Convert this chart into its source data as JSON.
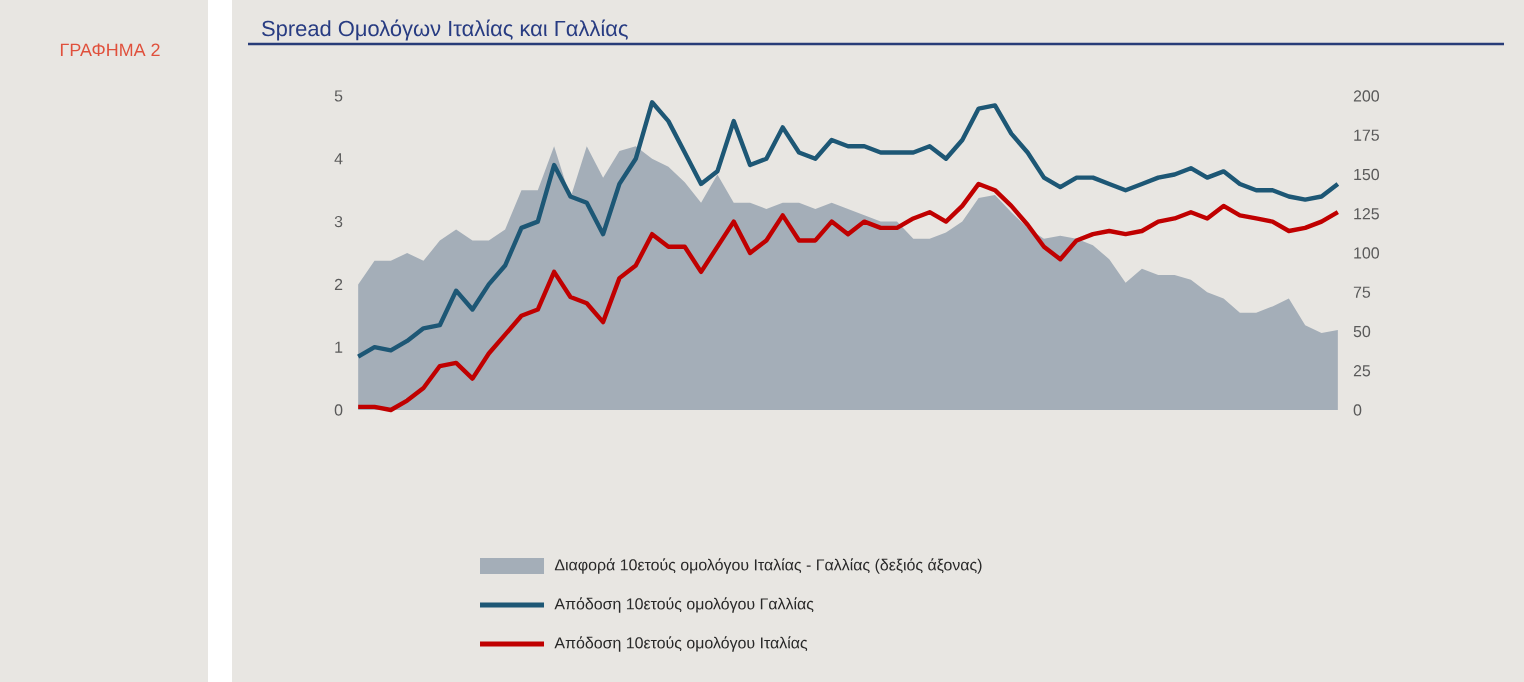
{
  "chart_data": {
    "type": "line",
    "title": "Spread Ομολόγων Ιταλίας και Γαλλίας",
    "annotations": [
      "ΓΡΑΦΗΜΑ 2"
    ],
    "categories": [
      null,
      null,
      null,
      null,
      null,
      null,
      null,
      null,
      null,
      null,
      null,
      null,
      null,
      null,
      null,
      null,
      null,
      null,
      null,
      null,
      null,
      null,
      null,
      null,
      null,
      null,
      null,
      null,
      null,
      null,
      null,
      null,
      null,
      null,
      null,
      null,
      null,
      null,
      null,
      null,
      null,
      null,
      null,
      null,
      null,
      null,
      null,
      null,
      null,
      null,
      null,
      null,
      null,
      null,
      null,
      null,
      null,
      null,
      null,
      null,
      null
    ],
    "ylim": [
      0,
      5
    ],
    "yticks": [
      0,
      1,
      2,
      3,
      4,
      5
    ],
    "y2lim": [
      0,
      200
    ],
    "y2ticks": [
      0,
      25,
      50,
      75,
      100,
      125,
      150,
      175,
      200
    ],
    "legend": "bottom",
    "grid": false,
    "series": [
      {
        "name": "Διαφορά 10ετούς ομολόγου Ιταλίας - Γαλλίας (δεξιός άξονας)",
        "type": "area",
        "axis": "y2",
        "color": "#a4aeb8",
        "values": [
          80,
          95,
          95,
          100,
          95,
          108,
          115,
          108,
          108,
          115,
          140,
          140,
          168,
          135,
          168,
          148,
          165,
          168,
          160,
          155,
          145,
          132,
          150,
          132,
          132,
          128,
          132,
          132,
          128,
          132,
          128,
          124,
          120,
          120,
          109,
          109,
          113,
          120,
          135,
          137,
          126,
          116,
          109,
          111,
          109,
          105,
          96,
          81,
          90,
          86,
          86,
          83,
          75,
          71,
          62,
          62,
          66,
          71,
          54,
          49,
          51
        ]
      },
      {
        "name": "Απόδοση 10ετούς ομολόγου Γαλλίας",
        "color": "#1d5775",
        "values": [
          0.85,
          1.0,
          0.95,
          1.1,
          1.3,
          1.35,
          1.9,
          1.6,
          2.0,
          2.3,
          2.9,
          3.0,
          3.9,
          3.4,
          3.3,
          2.8,
          3.6,
          4.0,
          4.9,
          4.6,
          4.1,
          3.6,
          3.8,
          4.6,
          3.9,
          4.0,
          4.5,
          4.1,
          4.0,
          4.3,
          4.2,
          4.2,
          4.1,
          4.1,
          4.1,
          4.2,
          4.0,
          4.3,
          4.8,
          4.85,
          4.4,
          4.1,
          3.7,
          3.55,
          3.7,
          3.7,
          3.6,
          3.5,
          3.6,
          3.7,
          3.75,
          3.85,
          3.7,
          3.8,
          3.6,
          3.5,
          3.5,
          3.4,
          3.35,
          3.4,
          3.6
        ]
      },
      {
        "name": "Απόδοση 10ετούς ομολόγου Ιταλίας",
        "color": "#c00000",
        "values": [
          0.05,
          0.05,
          0.0,
          0.15,
          0.35,
          0.7,
          0.75,
          0.5,
          0.9,
          1.2,
          1.5,
          1.6,
          2.2,
          1.8,
          1.7,
          1.4,
          2.1,
          2.3,
          2.8,
          2.6,
          2.6,
          2.2,
          2.6,
          3.0,
          2.5,
          2.7,
          3.1,
          2.7,
          2.7,
          3.0,
          2.8,
          3.0,
          2.9,
          2.9,
          3.05,
          3.15,
          3.0,
          3.25,
          3.6,
          3.5,
          3.25,
          2.95,
          2.6,
          2.4,
          2.7,
          2.8,
          2.85,
          2.8,
          2.85,
          3.0,
          3.05,
          3.15,
          3.05,
          3.25,
          3.1,
          3.05,
          3.0,
          2.85,
          2.9,
          3.0,
          3.15
        ]
      }
    ]
  }
}
